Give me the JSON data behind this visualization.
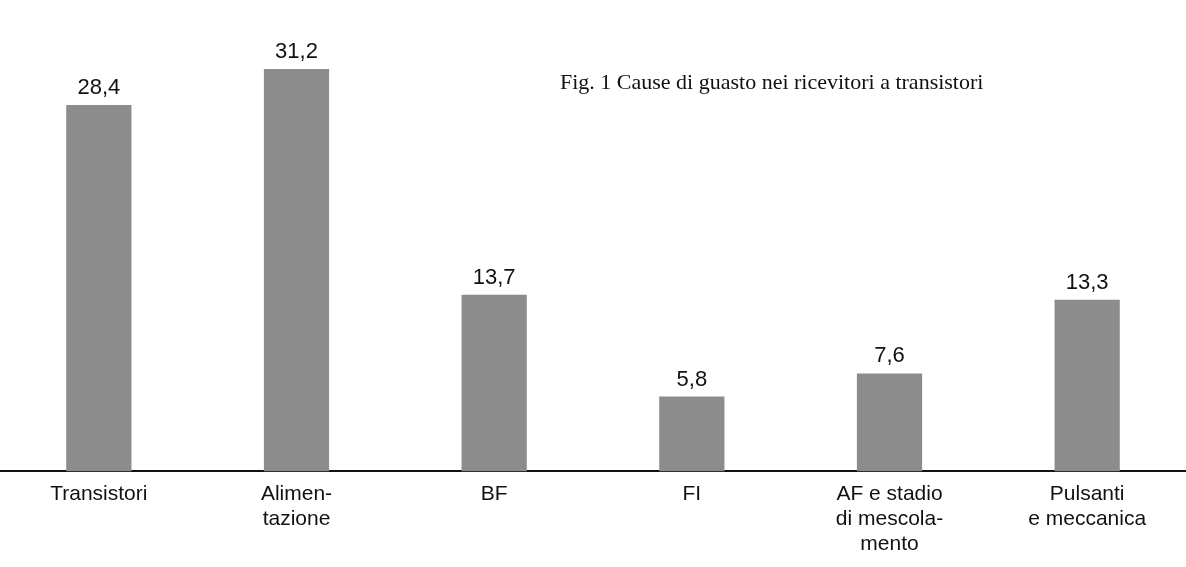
{
  "chart_data": {
    "type": "bar",
    "title": "Fig. 1 Cause di guasto nei ricevitori a transistori",
    "categories": [
      "Transistori",
      "Alimen-\ntazione",
      "BF",
      "FI",
      "AF e stadio\ndi mescola-\nmento",
      "Pulsanti\ne meccanica"
    ],
    "values": [
      28.4,
      31.2,
      13.7,
      5.8,
      7.6,
      13.3
    ],
    "value_labels": [
      "28,4",
      "31,2",
      "13,7",
      "5,8",
      "7,6",
      "13,3"
    ],
    "color": "#8c8c8c"
  }
}
